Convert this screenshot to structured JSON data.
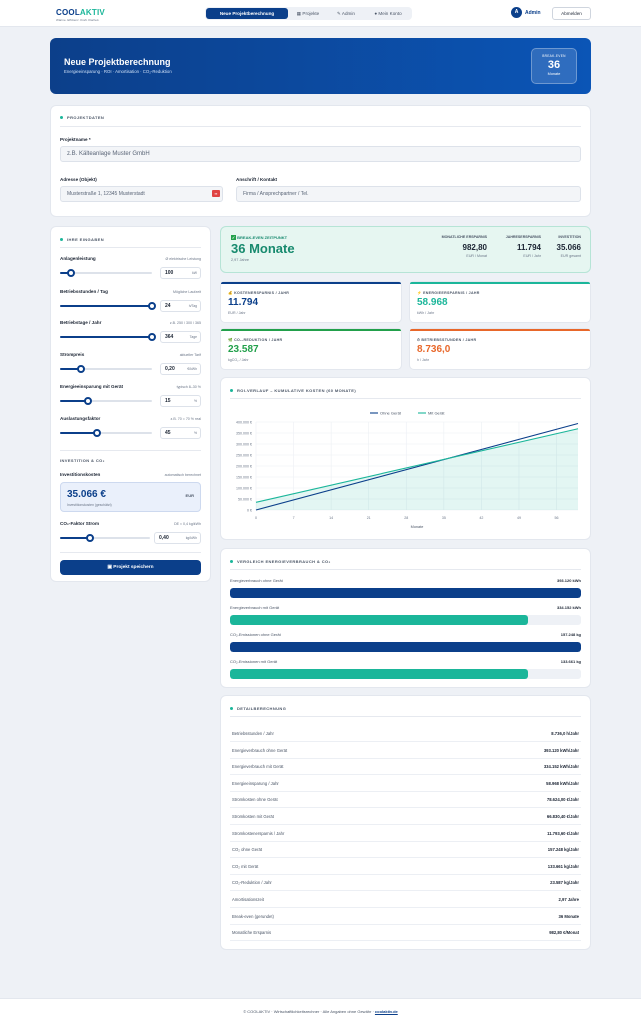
{
  "nav": {
    "logo": "COOLAKTIV",
    "logo_accent": "AKTIV",
    "logo_brand": "COOL",
    "tagline": "Wärme. Effizienz. Kraft. Klarheit.",
    "tabs": [
      "Neue Projektberechnung",
      "Projekte",
      "Admin",
      "Mein Konto"
    ],
    "user": "Admin",
    "user_initial": "A",
    "logout": "Abmelden"
  },
  "hero": {
    "title": "Neue Projektberechnung",
    "subtitle": "Energieeinsparung · ROI · Amortisation · CO₂-Reduktion",
    "be_label": "BREAK-EVEN",
    "be_value": "36",
    "be_unit": "Monate"
  },
  "project": {
    "section": "PROJEKTDATEN",
    "name_label": "Projektname *",
    "name_placeholder": "z.B. Kälteanlage Muster GmbH",
    "address_label": "Adresse (Objekt)",
    "address_placeholder": "Musterstraße 1, 12345 Musterstadt",
    "contact_label": "Anschrift / Kontakt",
    "contact_placeholder": "Firma / Ansprechpartner / Tel."
  },
  "inputs": {
    "section": "IHRE EINGABEN",
    "fields": [
      {
        "label": "Anlagenleistung",
        "hint": "Ø elektrische Leistung",
        "value": "100",
        "unit": "kW",
        "pos": 0.12
      },
      {
        "label": "Betriebsstunden / Tag",
        "hint": "Mögliche Laufzeit",
        "value": "24",
        "unit": "h/Tag",
        "pos": 1.0
      },
      {
        "label": "Betriebstage / Jahr",
        "hint": "z.B. 250 / 300 / 365",
        "value": "364",
        "unit": "Tage",
        "pos": 1.0
      },
      {
        "label": "Strompreis",
        "hint": "aktueller Tarif",
        "value": "0,20",
        "unit": "€/kWh",
        "pos": 0.23
      },
      {
        "label": "Energieeinsparung mit Gerät",
        "hint": "typisch 8–30 %",
        "value": "15",
        "unit": "%",
        "pos": 0.3
      },
      {
        "label": "Auslastungsfaktor",
        "hint": "z.B. 70 = 70 % real",
        "value": "45",
        "unit": "%",
        "pos": 0.4
      }
    ],
    "invest_section": "INVESTITION & CO₂",
    "invest_label": "Investitionskosten",
    "invest_hint": "automatisch berechnet",
    "invest_value": "35.066 €",
    "invest_unit": "EUR",
    "invest_sub": "Investitionskosten (geschätzt)",
    "co2_label": "CO₂-Faktor Strom",
    "co2_hint": "DE ≈ 0,4 kg/kWh",
    "co2_value": "0,40",
    "co2_unit": "kg/kWh",
    "co2_pos": 0.33,
    "save": "Projekt speichern"
  },
  "breakeven": {
    "label": "BREAK-EVEN ZEITPUNKT",
    "value": "36 Monate",
    "sub": "2,97 Jahre",
    "stats": [
      {
        "label": "MONATLICHE ERSPARNIS",
        "value": "982,80",
        "unit": "EUR / Monat"
      },
      {
        "label": "JAHRESERSPARNIS",
        "value": "11.794",
        "unit": "EUR / Jahr"
      },
      {
        "label": "INVESTITION",
        "value": "35.066",
        "unit": "EUR gesamt"
      }
    ]
  },
  "kpis": [
    {
      "label": "KOSTENERSPARNIS / JAHR",
      "icon": "💰",
      "value": "11.794",
      "unit": "EUR / Jahr",
      "color": "#0b3f8a"
    },
    {
      "label": "ENERGIEERSPARNIS / JAHR",
      "icon": "⚡",
      "value": "58.968",
      "unit": "kWh / Jahr",
      "color": "#1bb69a"
    },
    {
      "label": "CO₂-REDUKTION / JAHR",
      "icon": "🌿",
      "value": "23.587",
      "unit": "kgCO₂ / Jahr",
      "color": "#22a04b"
    },
    {
      "label": "BETRIEBSSTUNDEN / JAHR",
      "icon": "⏱",
      "value": "8.736,0",
      "unit": "h / Jahr",
      "color": "#e8672a"
    }
  ],
  "roi": {
    "section": "ROI-VERLAUF – KUMULATIVE KOSTEN (60 MONATE)",
    "legend": [
      "Ohne Gerät",
      "Mit Gerät"
    ],
    "xlabel": "Monate"
  },
  "chart_data": {
    "type": "line",
    "title": "ROI-VERLAUF – KUMULATIVE KOSTEN (60 MONATE)",
    "xlabel": "Monate",
    "ylabel": "",
    "x": [
      0,
      60
    ],
    "xticks": [
      0,
      7,
      14,
      21,
      28,
      35,
      42,
      49,
      56
    ],
    "yticks": [
      "0 €",
      "50.000 €",
      "100.000 €",
      "150.000 €",
      "200.000 €",
      "250.000 €",
      "300.000 €",
      "350.000 €",
      "400.000 €"
    ],
    "ylim": [
      0,
      400000
    ],
    "series": [
      {
        "name": "Ohne Gerät",
        "values": [
          0,
          393120
        ],
        "color": "#0b3f8a"
      },
      {
        "name": "Mit Gerät",
        "values": [
          35066,
          369216
        ],
        "color": "#1bb69a"
      }
    ],
    "legend": "top-center",
    "grid": true
  },
  "compare": {
    "section": "VERGLEICH ENERGIEVERBRAUCH & CO₂",
    "rows": [
      {
        "label": "Energieverbrauch ohne Gerät",
        "value": "393.120 kWh",
        "frac": 1.0,
        "color": "#0b3f8a"
      },
      {
        "label": "Energieverbrauch mit Gerät",
        "value": "334.152 kWh",
        "frac": 0.85,
        "color": "#1bb69a"
      },
      {
        "label": "CO₂-Emissionen ohne Gerät",
        "value": "157.248 kg",
        "frac": 1.0,
        "color": "#0b3f8a"
      },
      {
        "label": "CO₂-Emissionen mit Gerät",
        "value": "133.661 kg",
        "frac": 0.85,
        "color": "#1bb69a"
      }
    ]
  },
  "details": {
    "section": "DETAILBERECHNUNG",
    "rows": [
      {
        "k": "Betriebsstunden / Jahr",
        "v": "8.736,0 h/Jahr"
      },
      {
        "k": "Energieverbrauch ohne Gerät",
        "v": "393.120 kWh/Jahr"
      },
      {
        "k": "Energieverbrauch mit Gerät",
        "v": "334.152 kWh/Jahr"
      },
      {
        "k": "Energieeinsparung / Jahr",
        "v": "58.968 kWh/Jahr"
      },
      {
        "k": "Stromkosten ohne Gerät",
        "v": "78.624,00 €/Jahr"
      },
      {
        "k": "Stromkosten mit Gerät",
        "v": "66.830,40 €/Jahr"
      },
      {
        "k": "Stromkostenersparnis / Jahr",
        "v": "11.793,60 €/Jahr"
      },
      {
        "k": "CO₂ ohne Gerät",
        "v": "157.248 kg/Jahr"
      },
      {
        "k": "CO₂ mit Gerät",
        "v": "133.661 kg/Jahr"
      },
      {
        "k": "CO₂-Reduktion / Jahr",
        "v": "23.587 kg/Jahr"
      },
      {
        "k": "Amortisationszeit",
        "v": "2,97 Jahre"
      },
      {
        "k": "Break-even (gerundet)",
        "v": "36 Monate"
      },
      {
        "k": "Monatliche Ersparnis",
        "v": "982,80 €/Monat"
      }
    ]
  },
  "footer": {
    "text": "© COOLAKTIV · Wirtschaftlichkeitsrechner · Alle Angaben ohne Gewähr ·",
    "link": "coolaktiv.de"
  }
}
